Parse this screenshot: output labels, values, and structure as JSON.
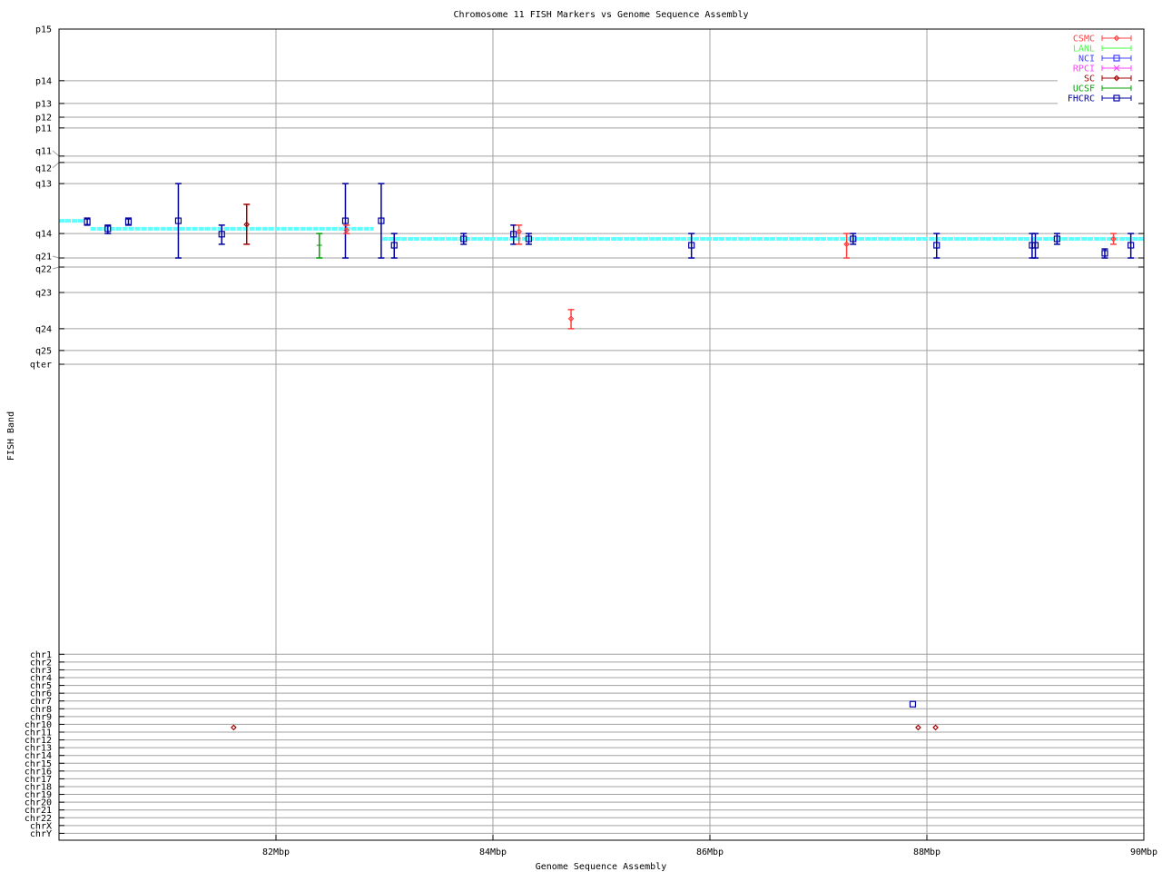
{
  "chart_data": {
    "type": "scatter",
    "title": "Chromosome 11 FISH Markers vs Genome Sequence Assembly",
    "xlabel": "Genome Sequence Assembly",
    "ylabel": "FISH Band",
    "xlim": [
      80,
      90
    ],
    "x_unit": "Mbp",
    "x_ticks": [
      {
        "value": 82,
        "label": "82Mbp"
      },
      {
        "value": 84,
        "label": "84Mbp"
      },
      {
        "value": 86,
        "label": "86Mbp"
      },
      {
        "value": 88,
        "label": "88Mbp"
      },
      {
        "value": 90,
        "label": "90Mbp"
      }
    ],
    "y_band_ticks": [
      {
        "label": "p15",
        "pos": 0
      },
      {
        "label": "p14",
        "pos": 15.4
      },
      {
        "label": "p13",
        "pos": 22.2
      },
      {
        "label": "p12",
        "pos": 26.3
      },
      {
        "label": "p11",
        "pos": 29.5
      },
      {
        "label": "q11",
        "pos": 37.9
      },
      {
        "label": "q12",
        "pos": 39.8
      },
      {
        "label": "q13",
        "pos": 46.1
      },
      {
        "label": "q14",
        "pos": 61.0
      },
      {
        "label": "q21",
        "pos": 68.3
      },
      {
        "label": "q22",
        "pos": 71.0
      },
      {
        "label": "q23",
        "pos": 78.6
      },
      {
        "label": "q24",
        "pos": 89.4
      },
      {
        "label": "q25",
        "pos": 95.9
      },
      {
        "label": "qter",
        "pos": 100
      }
    ],
    "y_chr_ticks": [
      "chr1",
      "chr2",
      "chr3",
      "chr4",
      "chr5",
      "chr6",
      "chr7",
      "chr8",
      "chr9",
      "chr10",
      "chr11",
      "chr12",
      "chr13",
      "chr14",
      "chr15",
      "chr16",
      "chr17",
      "chr18",
      "chr19",
      "chr20",
      "chr21",
      "chr22",
      "chrX",
      "chrY"
    ],
    "grid": true,
    "legend_position": "top-right",
    "legend": [
      {
        "name": "CSMC",
        "color": "#ff4040",
        "marker": "diamond"
      },
      {
        "name": "LANL",
        "color": "#40ff40",
        "marker": "plus"
      },
      {
        "name": "NCI",
        "color": "#4040ff",
        "marker": "square"
      },
      {
        "name": "RPCI",
        "color": "#ff40ff",
        "marker": "cross"
      },
      {
        "name": "SC",
        "color": "#a00000",
        "marker": "diamond"
      },
      {
        "name": "UCSF",
        "color": "#00a000",
        "marker": "plus"
      },
      {
        "name": "FHCRC",
        "color": "#0000a0",
        "marker": "square"
      }
    ],
    "assembly_segments": {
      "color": "#5fffff",
      "segments": [
        {
          "x0": 80.0,
          "x1": 80.23,
          "pos": 57.2
        },
        {
          "x0": 80.29,
          "x1": 82.9,
          "pos": 59.6
        },
        {
          "x0": 82.98,
          "x1": 90.0,
          "pos": 62.6
        }
      ]
    },
    "series": [
      {
        "name": "FHCRC",
        "points": [
          {
            "x": 80.26,
            "pos": 57.5,
            "lo": 56.4,
            "hi": 58.5
          },
          {
            "x": 80.45,
            "pos": 59.6,
            "lo": 58.5,
            "hi": 61.0
          },
          {
            "x": 80.64,
            "pos": 57.5,
            "lo": 56.4,
            "hi": 58.5
          },
          {
            "x": 81.1,
            "pos": 57.2,
            "lo": 46.1,
            "hi": 68.3
          },
          {
            "x": 81.5,
            "pos": 61.2,
            "lo": 58.5,
            "hi": 64.2
          },
          {
            "x": 82.64,
            "pos": 57.2,
            "lo": 46.1,
            "hi": 68.3
          },
          {
            "x": 82.97,
            "pos": 57.2,
            "lo": 46.1,
            "hi": 68.3
          },
          {
            "x": 83.09,
            "pos": 64.5,
            "lo": 61.0,
            "hi": 68.3
          },
          {
            "x": 83.73,
            "pos": 62.6,
            "lo": 61.0,
            "hi": 64.2
          },
          {
            "x": 84.19,
            "pos": 61.2,
            "lo": 58.5,
            "hi": 64.2
          },
          {
            "x": 84.33,
            "pos": 62.6,
            "lo": 61.0,
            "hi": 64.2
          },
          {
            "x": 85.83,
            "pos": 64.5,
            "lo": 61.0,
            "hi": 68.3
          },
          {
            "x": 87.32,
            "pos": 62.6,
            "lo": 61.0,
            "hi": 64.2
          },
          {
            "x": 88.09,
            "pos": 64.5,
            "lo": 61.0,
            "hi": 68.3
          },
          {
            "x": 88.97,
            "pos": 64.5,
            "lo": 61.0,
            "hi": 68.3
          },
          {
            "x": 89.0,
            "pos": 64.5,
            "lo": 61.0,
            "hi": 68.3
          },
          {
            "x": 89.2,
            "pos": 62.6,
            "lo": 61.0,
            "hi": 64.2
          },
          {
            "x": 89.64,
            "pos": 66.9,
            "lo": 65.6,
            "hi": 68.3
          },
          {
            "x": 89.88,
            "pos": 64.5,
            "lo": 61.0,
            "hi": 68.3
          }
        ],
        "chr_points": [
          {
            "x": 87.87,
            "chr": "chr7"
          }
        ]
      },
      {
        "name": "CSMC",
        "points": [
          {
            "x": 82.65,
            "pos": 60.0,
            "lo": 58.5,
            "hi": 61.0
          },
          {
            "x": 84.24,
            "pos": 60.4,
            "lo": 58.5,
            "hi": 64.2
          },
          {
            "x": 84.72,
            "pos": 86.4,
            "lo": 83.7,
            "hi": 89.4
          },
          {
            "x": 87.26,
            "pos": 64.2,
            "lo": 61.0,
            "hi": 68.3
          },
          {
            "x": 89.72,
            "pos": 62.6,
            "lo": 61.0,
            "hi": 64.2
          }
        ],
        "chr_points": []
      },
      {
        "name": "SC",
        "points": [
          {
            "x": 81.73,
            "pos": 58.3,
            "lo": 52.3,
            "hi": 64.2
          }
        ],
        "chr_points": [
          {
            "x": 81.61,
            "chr": "chr10"
          },
          {
            "x": 87.92,
            "chr": "chr10"
          },
          {
            "x": 88.08,
            "chr": "chr10"
          }
        ]
      },
      {
        "name": "UCSF",
        "points": [
          {
            "x": 82.4,
            "pos": 64.5,
            "lo": 61.0,
            "hi": 68.3
          }
        ],
        "chr_points": []
      }
    ]
  }
}
